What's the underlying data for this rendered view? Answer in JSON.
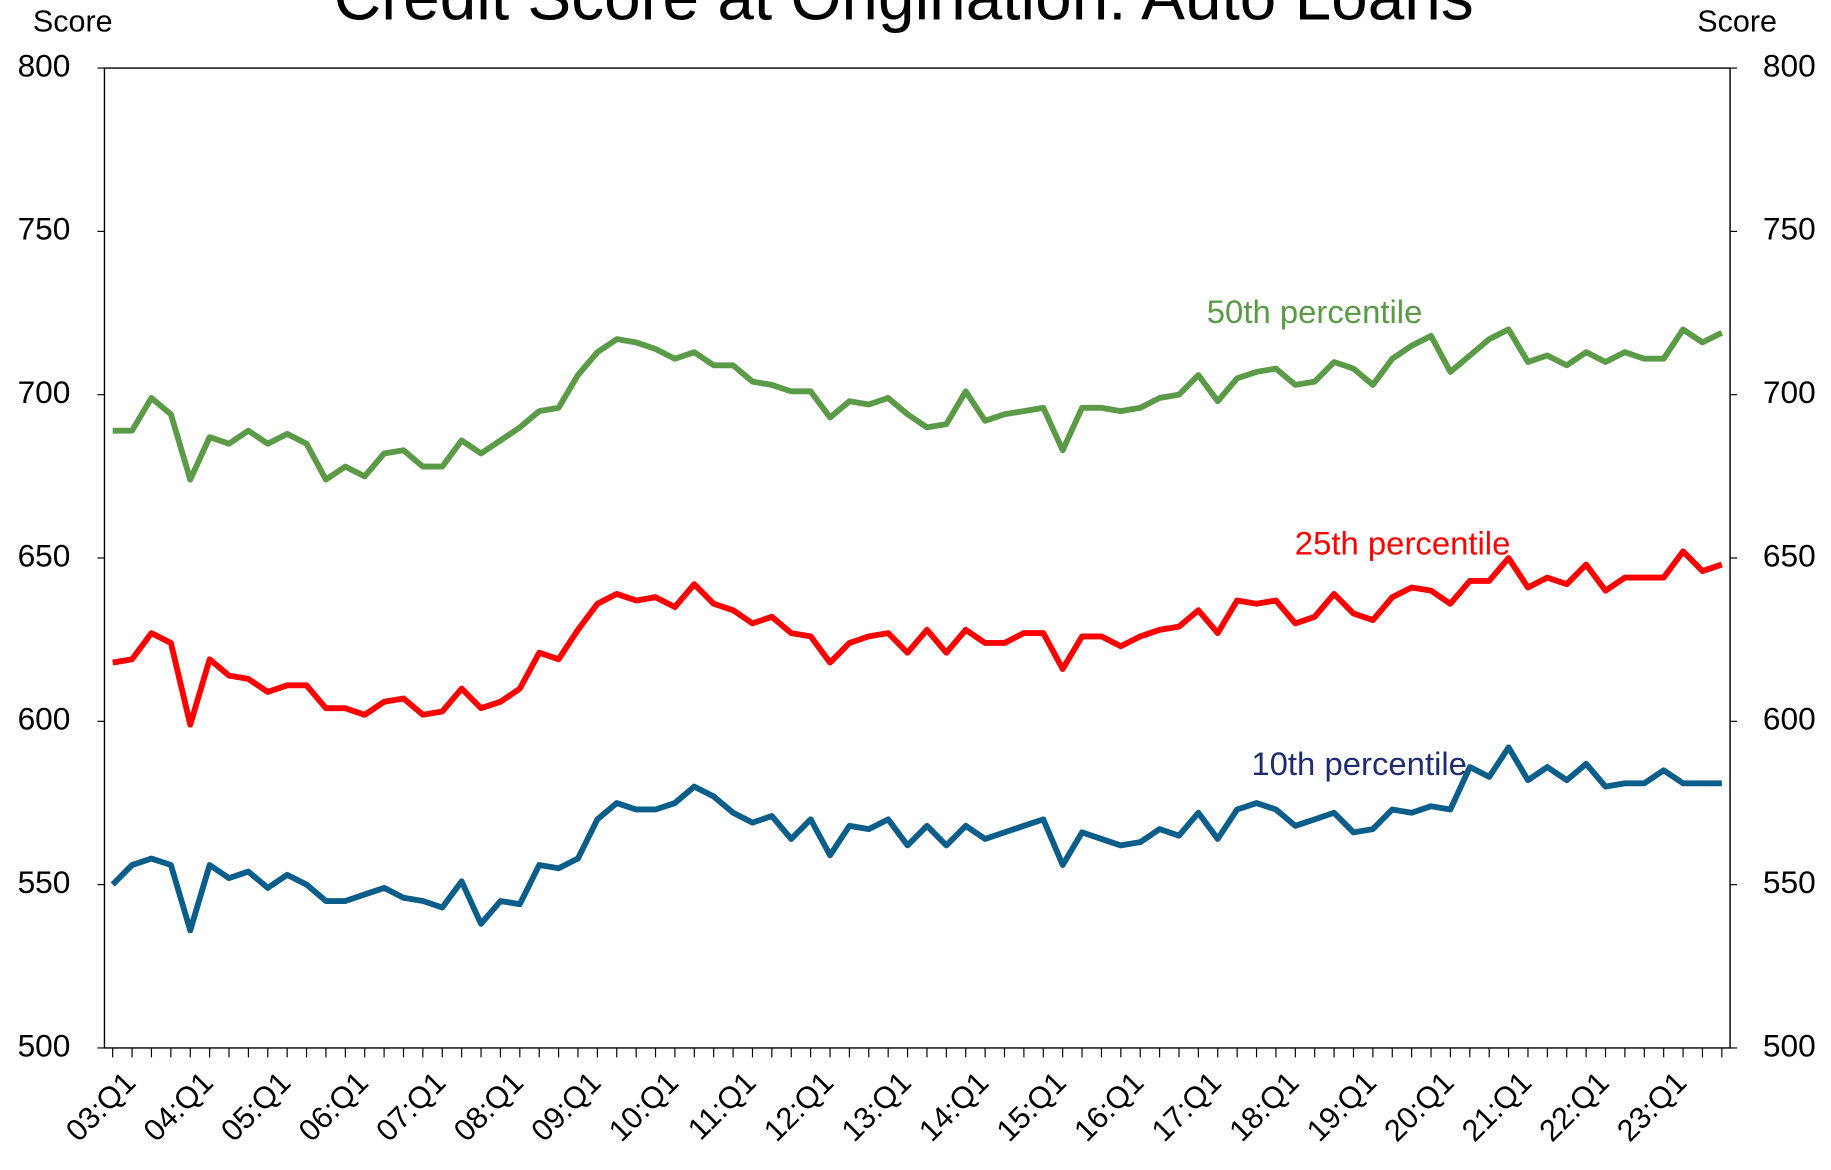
{
  "chart_data": {
    "type": "line",
    "title": "Credit Score at Origination: Auto Loans",
    "y_label": "Score",
    "y2_label": "Score",
    "categories": [
      "03:Q1",
      null,
      null,
      null,
      "04:Q1",
      null,
      null,
      null,
      "05:Q1",
      null,
      null,
      null,
      "06:Q1",
      null,
      null,
      null,
      "07:Q1",
      null,
      null,
      null,
      "08:Q1",
      null,
      null,
      null,
      "09:Q1",
      null,
      null,
      null,
      "10:Q1",
      null,
      null,
      null,
      "11:Q1",
      null,
      null,
      null,
      "12:Q1",
      null,
      null,
      null,
      "13:Q1",
      null,
      null,
      null,
      "14:Q1",
      null,
      null,
      null,
      "15:Q1",
      null,
      null,
      null,
      "16:Q1",
      null,
      null,
      null,
      "17:Q1",
      null,
      null,
      null,
      "18:Q1",
      null,
      null,
      null,
      "19:Q1",
      null,
      null,
      null,
      "20:Q1",
      null,
      null,
      null,
      "21:Q1",
      null,
      null,
      null,
      "22:Q1",
      null,
      null,
      null,
      "23:Q1",
      null,
      null,
      null
    ],
    "series": [
      {
        "name": "50th percentile",
        "color": "#5b9b47",
        "values": [
          689,
          689,
          699,
          694,
          674,
          687,
          685,
          689,
          685,
          688,
          685,
          674,
          678,
          675,
          682,
          683,
          678,
          678,
          686,
          682,
          686,
          690,
          695,
          696,
          706,
          713,
          717,
          716,
          714,
          711,
          713,
          709,
          709,
          704,
          703,
          701,
          701,
          693,
          698,
          697,
          699,
          694,
          690,
          691,
          701,
          692,
          694,
          695,
          696,
          683,
          696,
          696,
          695,
          696,
          699,
          700,
          706,
          698,
          705,
          707,
          708,
          703,
          704,
          710,
          708,
          703,
          711,
          715,
          718,
          707,
          712,
          717,
          720,
          710,
          712,
          709,
          713,
          710,
          713,
          711,
          711,
          720,
          716,
          719
        ]
      },
      {
        "name": "25th percentile",
        "color": "#ff0000",
        "values": [
          618,
          619,
          627,
          624,
          599,
          619,
          614,
          613,
          609,
          611,
          611,
          604,
          604,
          602,
          606,
          607,
          602,
          603,
          610,
          604,
          606,
          610,
          621,
          619,
          628,
          636,
          639,
          637,
          638,
          635,
          642,
          636,
          634,
          630,
          632,
          627,
          626,
          618,
          624,
          626,
          627,
          621,
          628,
          621,
          628,
          624,
          624,
          627,
          627,
          616,
          626,
          626,
          623,
          626,
          628,
          629,
          634,
          627,
          637,
          636,
          637,
          630,
          632,
          639,
          633,
          631,
          638,
          641,
          640,
          636,
          643,
          643,
          650,
          641,
          644,
          642,
          648,
          640,
          644,
          644,
          644,
          652,
          646,
          648
        ]
      },
      {
        "name": "10th percentile",
        "color": "#0b5e8a",
        "values": [
          550,
          556,
          558,
          556,
          536,
          556,
          552,
          554,
          549,
          553,
          550,
          545,
          545,
          547,
          549,
          546,
          545,
          543,
          551,
          538,
          545,
          544,
          556,
          555,
          558,
          570,
          575,
          573,
          573,
          575,
          580,
          577,
          572,
          569,
          571,
          564,
          570,
          559,
          568,
          567,
          570,
          562,
          568,
          562,
          568,
          564,
          566,
          568,
          570,
          556,
          566,
          564,
          562,
          563,
          567,
          565,
          572,
          564,
          573,
          575,
          573,
          568,
          570,
          572,
          566,
          567,
          573,
          572,
          574,
          573,
          586,
          583,
          592,
          582,
          586,
          582,
          587,
          580,
          581,
          581,
          585,
          581,
          581,
          581
        ]
      }
    ],
    "annotations": [
      {
        "text": "50th percentile",
        "color": "#5b9b47"
      },
      {
        "text": "25th percentile",
        "color": "#ff0000"
      },
      {
        "text": "10th percentile",
        "color": "#1f2d6e"
      }
    ],
    "ylim": [
      500,
      800
    ],
    "yticks": [
      500,
      550,
      600,
      650,
      700,
      750,
      800
    ],
    "y2lim": [
      500,
      800
    ],
    "y2ticks": [
      500,
      550,
      600,
      650,
      700,
      750,
      800
    ],
    "grid": false
  }
}
